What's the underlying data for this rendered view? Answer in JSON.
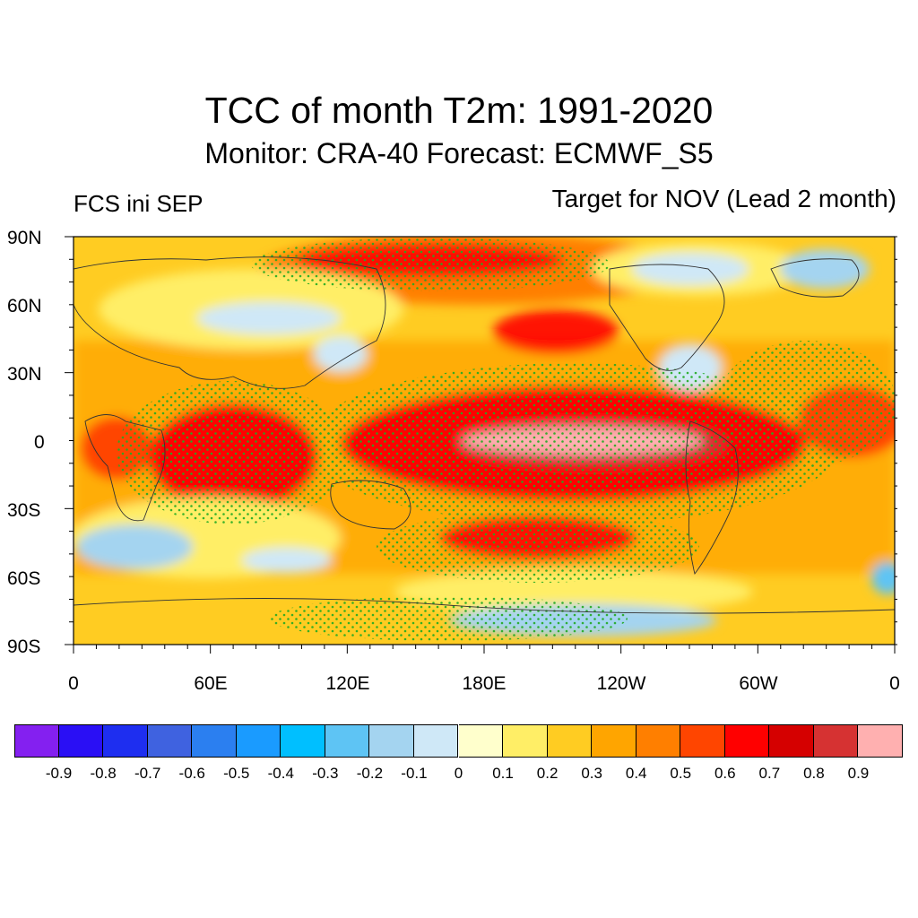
{
  "title": "TCC of month T2m: 1991-2020",
  "subtitle": "Monitor: CRA-40   Forecast: ECMWF_S5",
  "left_label": "FCS ini SEP",
  "right_label": "Target for NOV (Lead 2 month)",
  "map": {
    "lat_ticks": [
      "90N",
      "60N",
      "30N",
      "0",
      "30S",
      "60S",
      "90S"
    ],
    "lon_ticks": [
      "0",
      "60E",
      "120E",
      "180E",
      "120W",
      "60W",
      "0"
    ],
    "stipple_color": "#22aa22"
  },
  "colorbar": {
    "colors": [
      "#8420f0",
      "#2a0ff5",
      "#1e2ef0",
      "#3f62e0",
      "#2b7ff0",
      "#1a9bff",
      "#00bfff",
      "#5ec4f4",
      "#a4d4f0",
      "#cfe8f7",
      "#ffffcc",
      "#ffee66",
      "#ffcc22",
      "#ffa500",
      "#ff7f00",
      "#ff4500",
      "#ff0000",
      "#d50000",
      "#d63232",
      "#ffb0b0"
    ],
    "labels": [
      "-0.9",
      "-0.8",
      "-0.7",
      "-0.6",
      "-0.5",
      "-0.4",
      "-0.3",
      "-0.2",
      "-0.1",
      "0",
      "0.1",
      "0.2",
      "0.3",
      "0.4",
      "0.5",
      "0.6",
      "0.7",
      "0.8",
      "0.9"
    ]
  }
}
